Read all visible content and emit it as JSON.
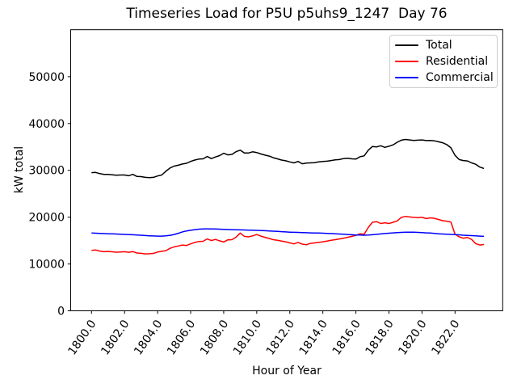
{
  "figure": {
    "background_color": "#ffffff",
    "axes_edge_color": "#000000",
    "legend_border_color": "#cccccc"
  },
  "chart_data": {
    "type": "line",
    "title": "Timeseries Load for P5U p5uhs9_1247  Day 76",
    "xlabel": "Hour of Year",
    "ylabel": "kW total",
    "grid": false,
    "legend_position": "upper right",
    "legend_entries": [
      "Total",
      "Residential",
      "Commercial"
    ],
    "xlim": [
      1798.8,
      1824.9
    ],
    "ylim": [
      0,
      60000
    ],
    "xticks": {
      "values": [
        1800,
        1802,
        1804,
        1806,
        1808,
        1810,
        1812,
        1814,
        1816,
        1818,
        1820,
        1822
      ],
      "labels": [
        "1800.0",
        "1802.0",
        "1804.0",
        "1806.0",
        "1808.0",
        "1810.0",
        "1812.0",
        "1814.0",
        "1816.0",
        "1818.0",
        "1820.0",
        "1822.0"
      ],
      "rotation_deg": 55
    },
    "yticks": {
      "values": [
        0,
        10000,
        20000,
        30000,
        40000,
        50000
      ],
      "labels": [
        "0",
        "10000",
        "20000",
        "30000",
        "40000",
        "50000"
      ]
    },
    "x_start": 1800.0,
    "x_step": 0.25,
    "x_end": 1823.75,
    "series": [
      {
        "name": "Total",
        "color": "#000000",
        "values": [
          29500,
          29550,
          29300,
          29150,
          29150,
          29050,
          28950,
          29000,
          29000,
          28850,
          29150,
          28700,
          28650,
          28500,
          28450,
          28500,
          28800,
          29000,
          29800,
          30500,
          30900,
          31100,
          31350,
          31500,
          31900,
          32200,
          32400,
          32450,
          32950,
          32500,
          32850,
          33150,
          33650,
          33300,
          33400,
          34000,
          34300,
          33700,
          33700,
          33950,
          33800,
          33500,
          33250,
          33050,
          32700,
          32450,
          32200,
          32050,
          31800,
          31600,
          31900,
          31400,
          31550,
          31600,
          31650,
          31800,
          31900,
          31950,
          32100,
          32250,
          32300,
          32500,
          32600,
          32450,
          32400,
          32900,
          33100,
          34300,
          35100,
          35000,
          35250,
          34900,
          35150,
          35450,
          36000,
          36450,
          36600,
          36500,
          36400,
          36450,
          36500,
          36350,
          36400,
          36300,
          36100,
          35900,
          35500,
          34800,
          33200,
          32300,
          32100,
          32000,
          31600,
          31300,
          30700,
          30400
        ]
      },
      {
        "name": "Residential",
        "color": "#ff0000",
        "values": [
          12900,
          13000,
          12750,
          12620,
          12680,
          12600,
          12520,
          12560,
          12620,
          12500,
          12650,
          12350,
          12280,
          12150,
          12180,
          12250,
          12550,
          12700,
          12850,
          13350,
          13650,
          13850,
          14050,
          13950,
          14300,
          14600,
          14800,
          14850,
          15350,
          15000,
          15250,
          14950,
          14700,
          15150,
          15200,
          15750,
          16600,
          15900,
          15800,
          16000,
          16300,
          15950,
          15700,
          15450,
          15200,
          15050,
          14900,
          14750,
          14500,
          14300,
          14600,
          14250,
          14100,
          14400,
          14500,
          14600,
          14750,
          14900,
          15050,
          15200,
          15350,
          15500,
          15700,
          15900,
          16100,
          16450,
          16350,
          17800,
          18900,
          19050,
          18650,
          18800,
          18650,
          18900,
          19200,
          19950,
          20150,
          20050,
          19950,
          19900,
          19950,
          19700,
          19850,
          19750,
          19500,
          19250,
          19150,
          18950,
          16350,
          15800,
          15500,
          15650,
          15250,
          14350,
          14050,
          14150
        ]
      },
      {
        "name": "Commercial",
        "color": "#0000ff",
        "values": [
          16600,
          16570,
          16540,
          16500,
          16460,
          16430,
          16400,
          16350,
          16310,
          16280,
          16250,
          16200,
          16150,
          16080,
          16020,
          15980,
          15950,
          15960,
          16000,
          16120,
          16300,
          16550,
          16850,
          17050,
          17200,
          17330,
          17430,
          17480,
          17500,
          17490,
          17470,
          17440,
          17400,
          17370,
          17340,
          17310,
          17280,
          17260,
          17230,
          17210,
          17180,
          17140,
          17100,
          17050,
          17000,
          16950,
          16900,
          16850,
          16800,
          16770,
          16740,
          16710,
          16680,
          16650,
          16630,
          16610,
          16580,
          16540,
          16500,
          16450,
          16400,
          16350,
          16300,
          16250,
          16200,
          16170,
          16150,
          16170,
          16250,
          16330,
          16420,
          16500,
          16570,
          16640,
          16700,
          16750,
          16780,
          16790,
          16780,
          16750,
          16700,
          16650,
          16600,
          16520,
          16450,
          16400,
          16350,
          16320,
          16280,
          16220,
          16150,
          16100,
          16050,
          16000,
          15950,
          15900
        ]
      }
    ]
  }
}
